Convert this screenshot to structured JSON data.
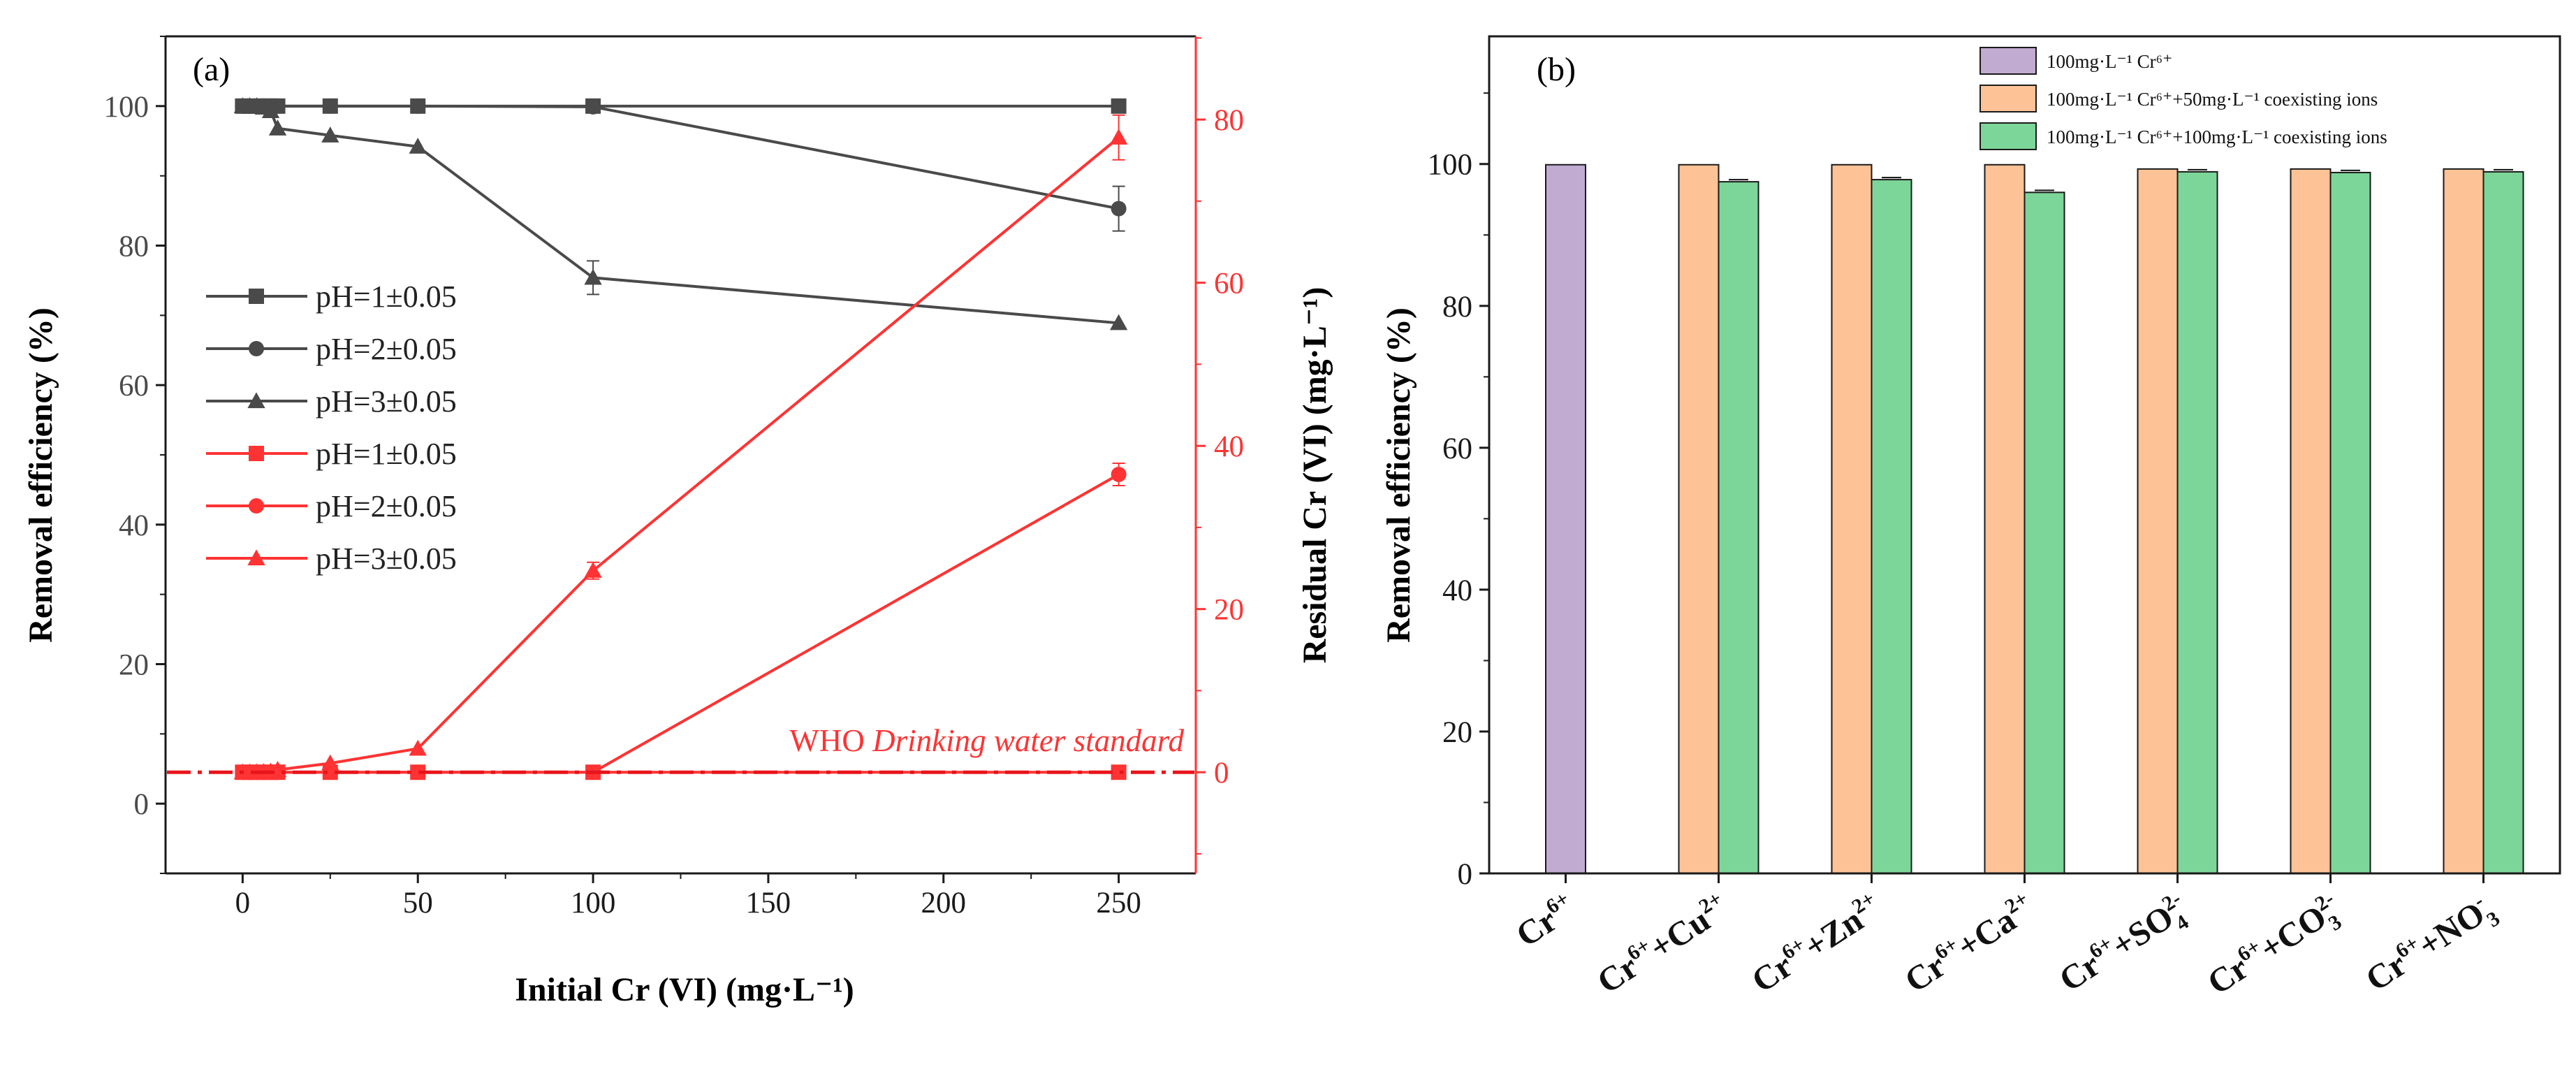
{
  "colors": {
    "gray": "#4a4a4a",
    "red": "#ff3333",
    "purple": "#c2abd1",
    "orange": "#fdc397",
    "green": "#7dd699",
    "axis": "#1a1a1a"
  },
  "chart_data": [
    {
      "type": "line",
      "panel_label": "(a)",
      "xlabel": "Initial Cr (VI) (mg·L⁻¹)",
      "ylabel_left": "Removal efficiency (%)",
      "ylabel_right": "Residual Cr (VI) (mg·L⁻¹)",
      "xlim": [
        -22,
        272
      ],
      "ylim_left": [
        -10,
        110
      ],
      "ylim_right": [
        -12.4,
        90.2
      ],
      "x_ticks": [
        0,
        50,
        100,
        150,
        200,
        250
      ],
      "y_ticks_left": [
        0,
        20,
        40,
        60,
        80,
        100
      ],
      "y_ticks_right": [
        0,
        20,
        40,
        60,
        80
      ],
      "annotation": {
        "prefix": "WHO ",
        "italic": "Drinking water standard",
        "y_right": 0
      },
      "series": [
        {
          "name": "pH=1±0.05",
          "axis": "left",
          "color": "gray",
          "marker": "square",
          "x": [
            0,
            2,
            4,
            6,
            8,
            10,
            25,
            50,
            100,
            250
          ],
          "y": [
            100,
            100,
            100,
            100,
            100,
            100,
            100,
            100,
            100,
            100
          ]
        },
        {
          "name": "pH=2±0.05",
          "axis": "left",
          "color": "gray",
          "marker": "circle",
          "x": [
            0,
            2,
            4,
            6,
            8,
            10,
            25,
            50,
            100,
            250
          ],
          "y": [
            100,
            100,
            100,
            100,
            100,
            100,
            100,
            100,
            99.9,
            85.3
          ]
        },
        {
          "name": "pH=3±0.05",
          "axis": "left",
          "color": "gray",
          "marker": "triangle",
          "x": [
            0,
            2,
            4,
            6,
            8,
            10,
            25,
            50,
            100,
            250
          ],
          "y": [
            100,
            100,
            100,
            99.8,
            99.3,
            96.8,
            95.8,
            94.2,
            75.4,
            68.9
          ]
        },
        {
          "name": "pH=1±0.05",
          "axis": "right",
          "color": "red",
          "marker": "square",
          "x": [
            0,
            2,
            4,
            6,
            8,
            10,
            25,
            50,
            100,
            250
          ],
          "y": [
            0,
            0,
            0,
            0,
            0,
            0,
            0,
            0,
            0,
            0
          ]
        },
        {
          "name": "pH=2±0.05",
          "axis": "right",
          "color": "red",
          "marker": "circle",
          "x": [
            0,
            2,
            4,
            6,
            8,
            10,
            25,
            50,
            100,
            250
          ],
          "y": [
            0,
            0,
            0,
            0,
            0,
            0,
            0,
            0,
            0,
            36.5
          ]
        },
        {
          "name": "pH=3±0.05",
          "axis": "right",
          "color": "red",
          "marker": "triangle",
          "x": [
            0,
            2,
            4,
            6,
            8,
            10,
            25,
            50,
            100,
            250
          ],
          "y": [
            0,
            0,
            0,
            0.05,
            0.1,
            0.3,
            1.1,
            2.9,
            24.7,
            77.8
          ]
        }
      ]
    },
    {
      "type": "bar",
      "panel_label": "(b)",
      "ylabel": "Removal efficiency (%)",
      "ylim": [
        0,
        118
      ],
      "y_ticks": [
        0,
        20,
        40,
        60,
        80,
        100
      ],
      "categories": [
        {
          "base": "Cr",
          "sup1": "6+",
          "ion": "",
          "sub": "",
          "sup2": ""
        },
        {
          "base": "Cr",
          "sup1": "6+",
          "ion": "+Cu",
          "sub": "",
          "sup2": "2+"
        },
        {
          "base": "Cr",
          "sup1": "6+",
          "ion": "+Zn",
          "sub": "",
          "sup2": "2+"
        },
        {
          "base": "Cr",
          "sup1": "6+",
          "ion": "+Ca",
          "sub": "",
          "sup2": "2+"
        },
        {
          "base": "Cr",
          "sup1": "6+",
          "ion": "+SO",
          "sub": "4",
          "sup2": "2-"
        },
        {
          "base": "Cr",
          "sup1": "6+",
          "ion": "+CO",
          "sub": "3",
          "sup2": "2-"
        },
        {
          "base": "Cr",
          "sup1": "6+",
          "ion": "+NO",
          "sub": "3",
          "sup2": "-"
        }
      ],
      "series": [
        {
          "name": "100mg·L⁻¹ Cr⁶⁺",
          "color": "purple",
          "values": [
            99.9,
            null,
            null,
            null,
            null,
            null,
            null
          ]
        },
        {
          "name": "100mg·L⁻¹ Cr⁶⁺+50mg·L⁻¹ coexisting ions",
          "color": "orange",
          "values": [
            null,
            99.9,
            99.9,
            99.9,
            99.3,
            99.3,
            99.3
          ]
        },
        {
          "name": "100mg·L⁻¹ Cr⁶⁺+100mg·L⁻¹ coexisting ions",
          "color": "green",
          "values": [
            null,
            97.5,
            97.8,
            96.0,
            98.9,
            98.8,
            98.9
          ]
        }
      ],
      "legend_placement": "top-right"
    }
  ]
}
